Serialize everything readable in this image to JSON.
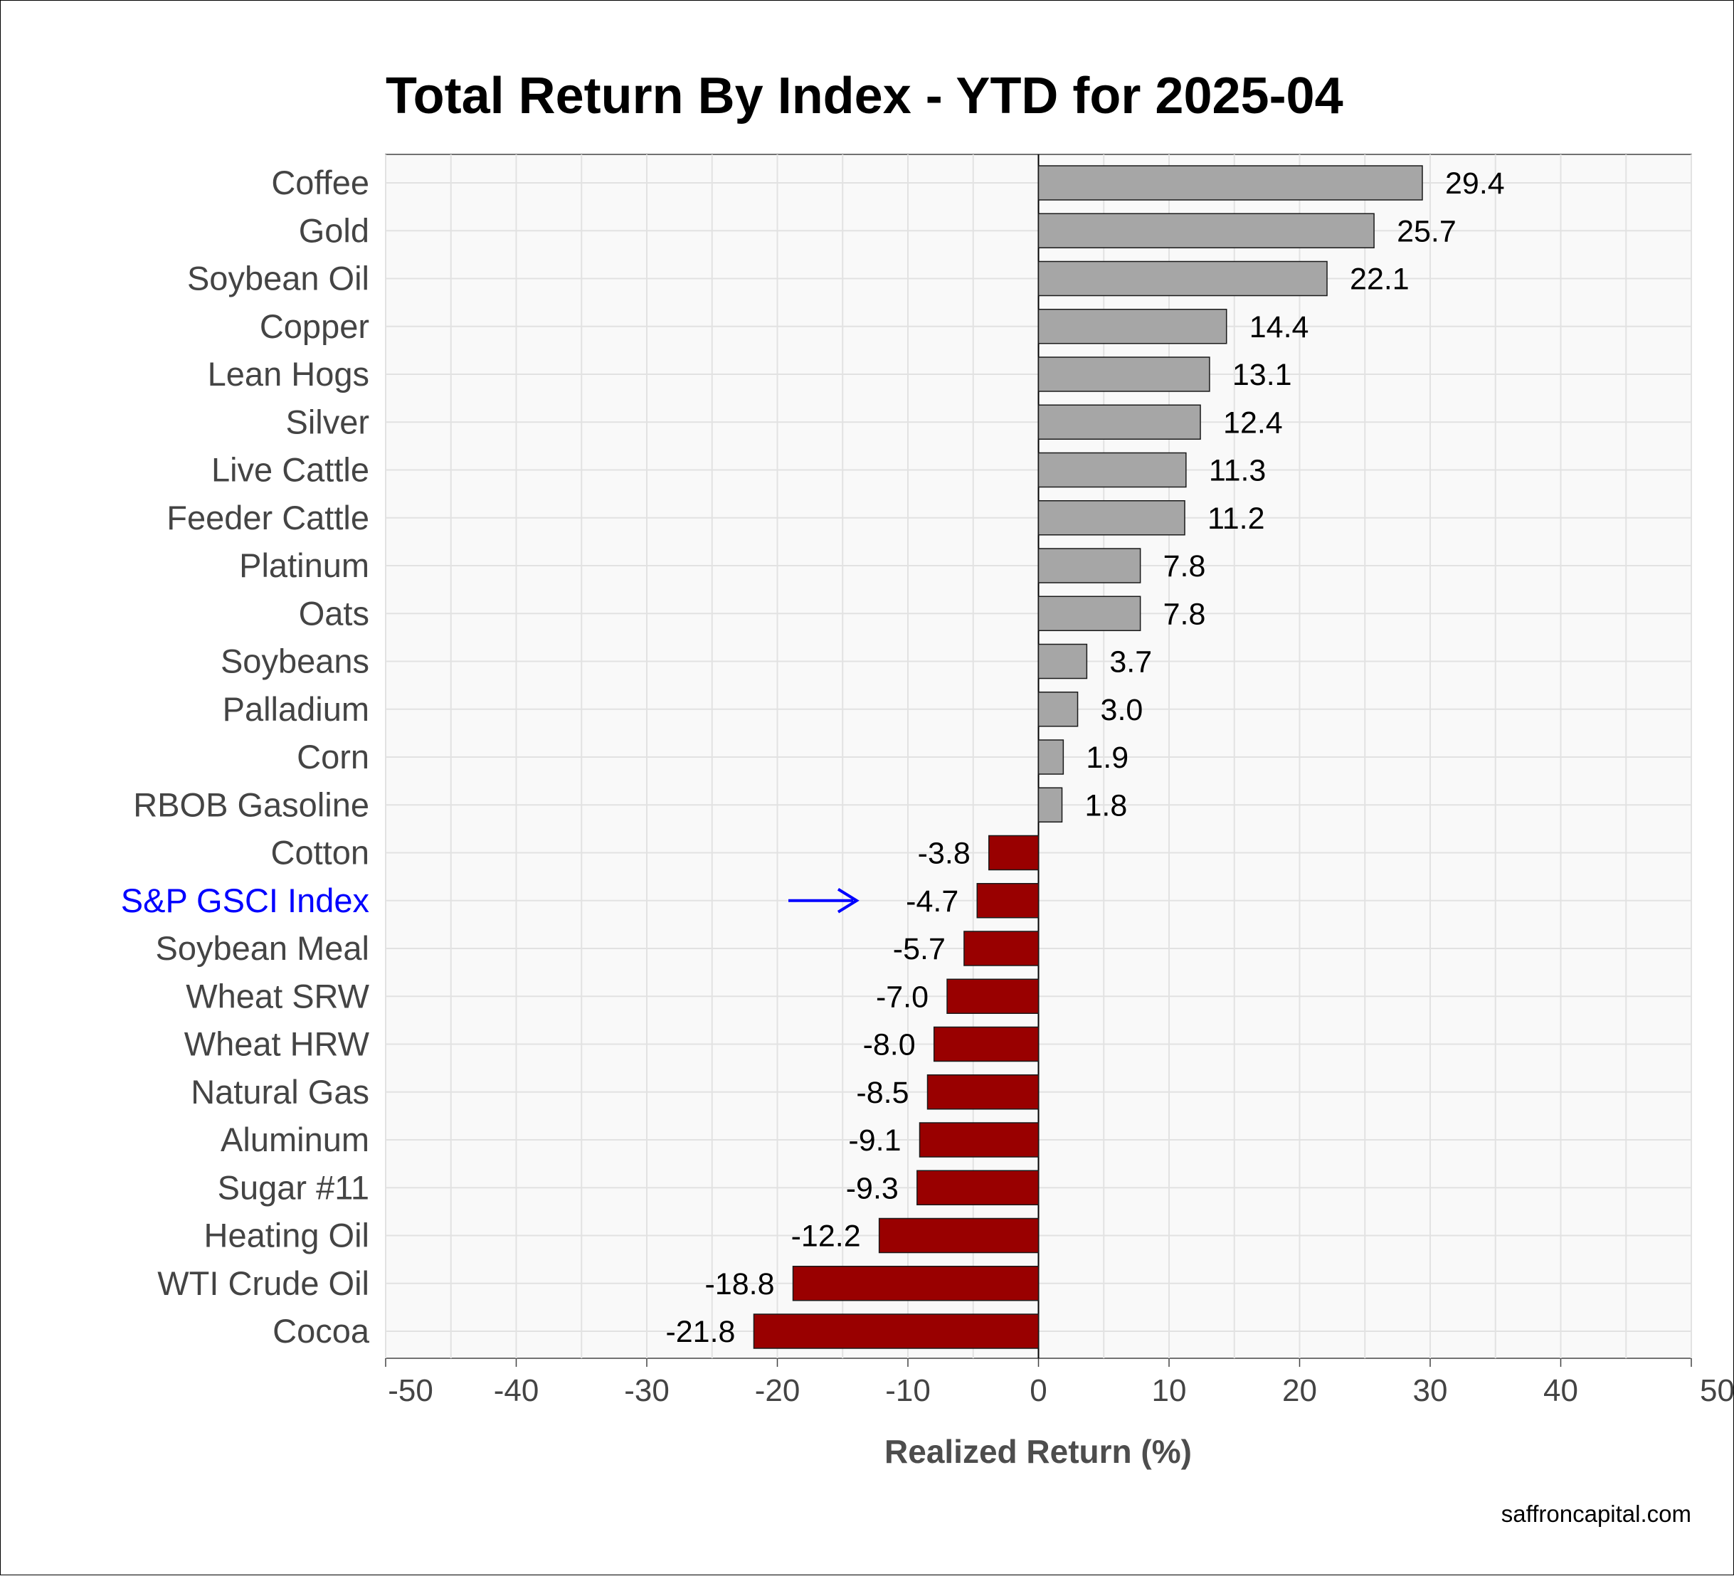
{
  "chart_data": {
    "type": "bar",
    "orientation": "horizontal",
    "title": "Total Return By Index - YTD for 2025-04",
    "xlabel": "Realized Return (%)",
    "ylabel": "",
    "xlim": [
      -50,
      50
    ],
    "xticks": [
      -50,
      -40,
      -30,
      -20,
      -10,
      0,
      10,
      20,
      30,
      40,
      50
    ],
    "grid": true,
    "categories": [
      "Coffee",
      "Gold",
      "Soybean Oil",
      "Copper",
      "Lean Hogs",
      "Silver",
      "Live Cattle",
      "Feeder Cattle",
      "Platinum",
      "Oats",
      "Soybeans",
      "Palladium",
      "Corn",
      "RBOB Gasoline",
      "Cotton",
      "S&P GSCI Index",
      "Soybean Meal",
      "Wheat SRW",
      "Wheat HRW",
      "Natural Gas",
      "Aluminum",
      "Sugar #11",
      "Heating Oil",
      "WTI Crude Oil",
      "Cocoa"
    ],
    "values": [
      29.4,
      25.7,
      22.1,
      14.4,
      13.1,
      12.4,
      11.3,
      11.2,
      7.8,
      7.8,
      3.7,
      3.0,
      1.9,
      1.8,
      -3.8,
      -4.7,
      -5.7,
      -7.0,
      -8.0,
      -8.5,
      -9.1,
      -9.3,
      -12.2,
      -18.8,
      -21.8
    ],
    "value_labels": [
      "29.4",
      "25.7",
      "22.1",
      "14.4",
      "13.1",
      "12.4",
      "11.3",
      "11.2",
      "7.8",
      "7.8",
      "3.7",
      "3.0",
      "1.9",
      "1.8",
      "-3.8",
      "-4.7",
      "-5.7",
      "-7.0",
      "-8.0",
      "-8.5",
      "-9.1",
      "-9.3",
      "-12.2",
      "-18.8",
      "-21.8"
    ],
    "highlighted_category": "S&P GSCI Index",
    "highlight_marker": "arrow",
    "colors": {
      "positive": "#a6a6a6",
      "negative": "#990000",
      "bar_outline": "#1a1a1a",
      "highlight_label": "#0000ff",
      "arrow": "#0000ff",
      "panel_background": "#f9f9f9",
      "grid": "#e2e2e2",
      "zero_line": "#000000"
    },
    "source": "saffroncapital.com"
  }
}
